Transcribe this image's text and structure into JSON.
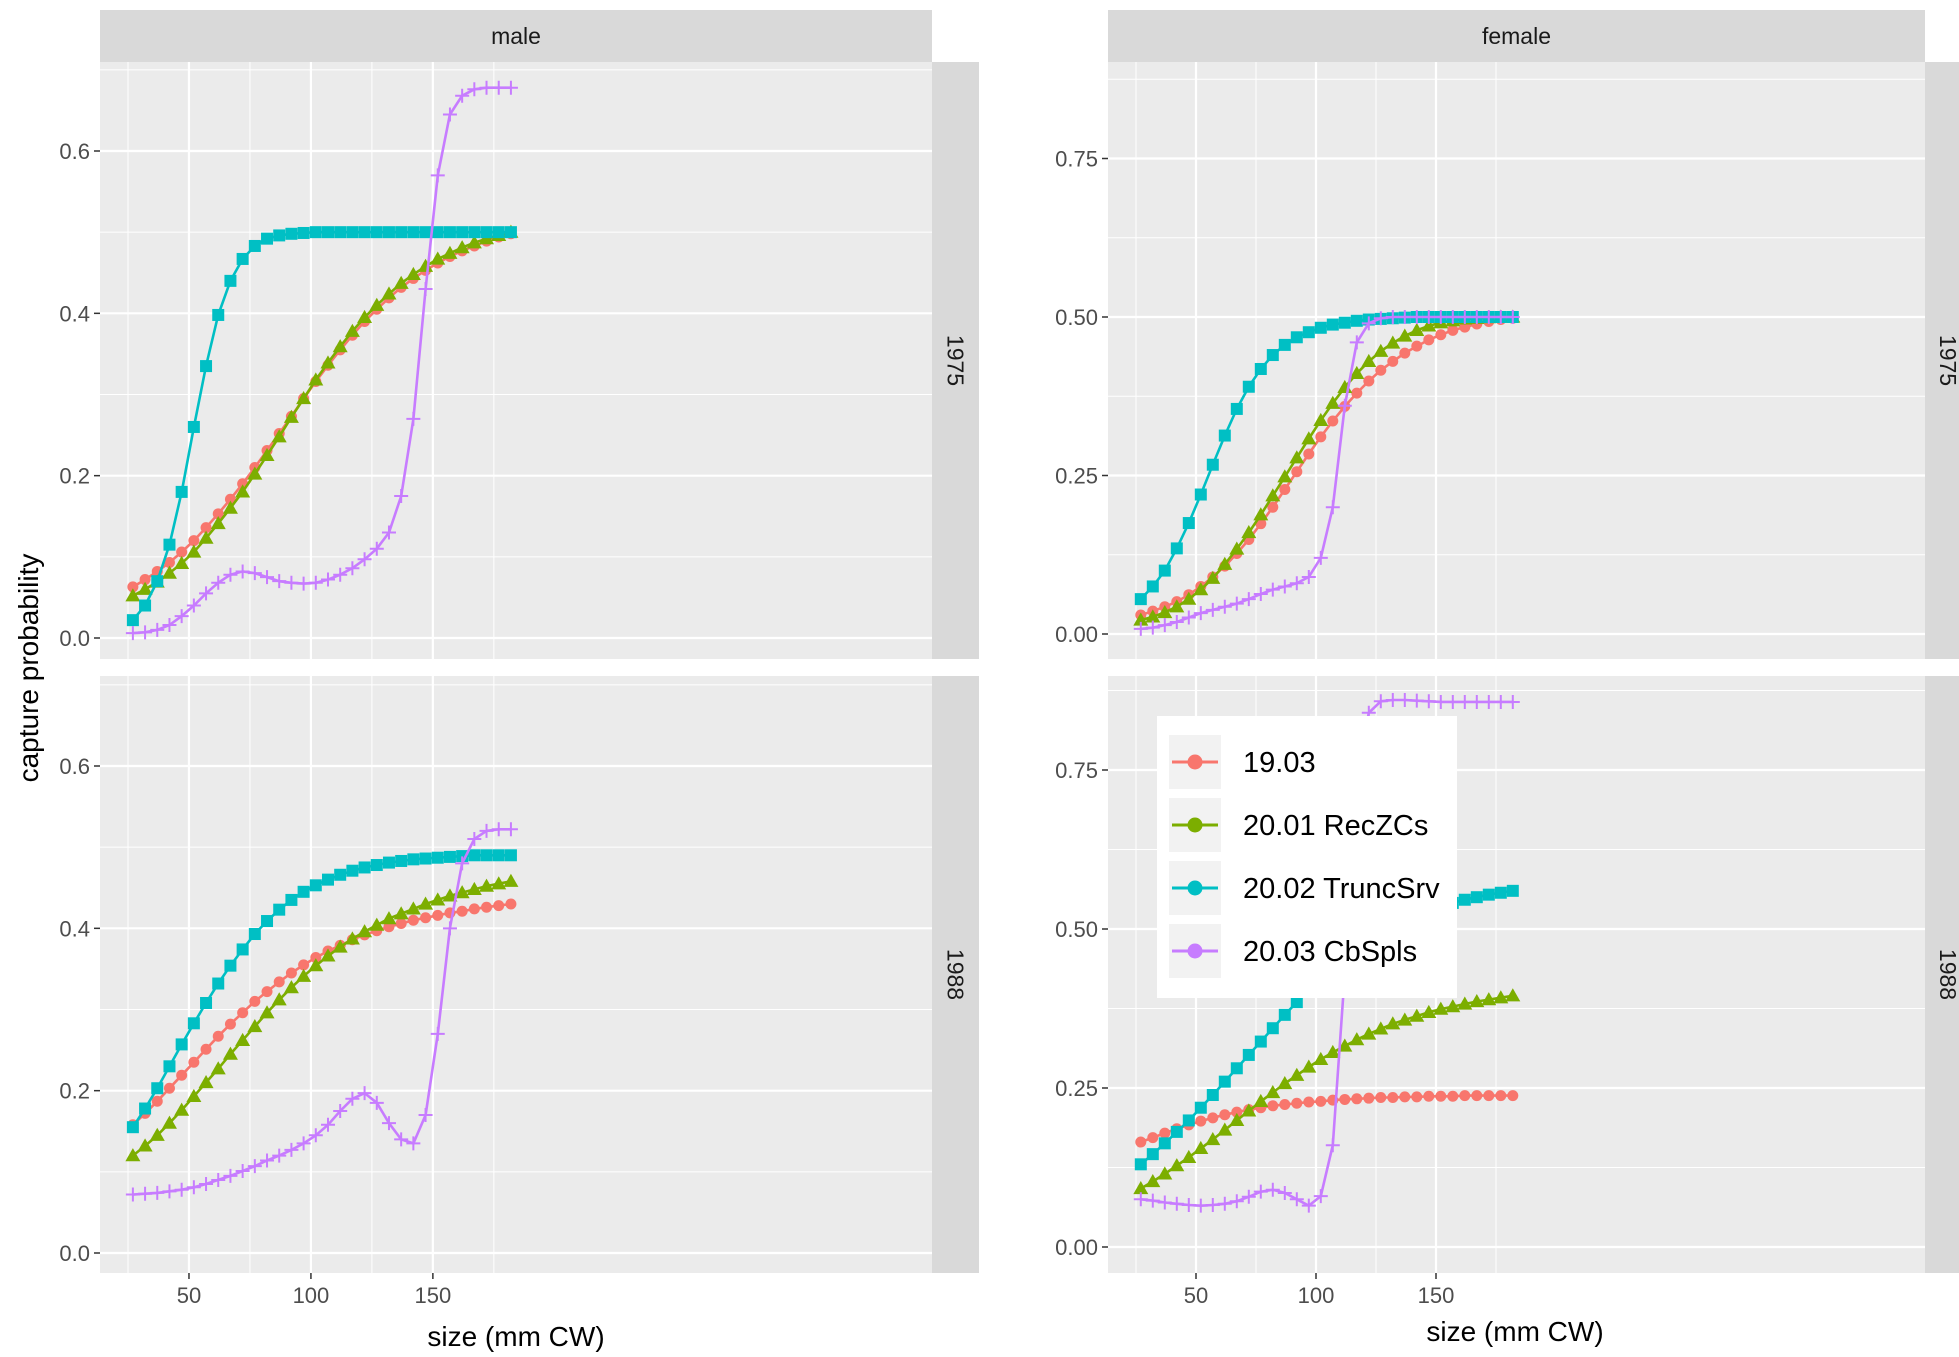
{
  "chart_data": {
    "type": "line",
    "layout": "facet_grid rows=year, cols=sex, independent y-scales per column",
    "ylabel": "capture probability",
    "xlabel": "size (mm CW)",
    "column_strips": [
      "male",
      "female"
    ],
    "row_strips": [
      "1975",
      "1988"
    ],
    "x_ticks": [
      50,
      100,
      150
    ],
    "y_ticks": {
      "male": [
        "0.0",
        "0.2",
        "0.4",
        "0.6"
      ],
      "female": [
        "0.00",
        "0.25",
        "0.50",
        "0.75"
      ]
    },
    "ylim": {
      "male": [
        -0.025,
        0.7
      ],
      "female": [
        -0.03,
        0.9
      ]
    },
    "xlim": [
      22,
      188
    ],
    "grid": true,
    "legend_position": "inside bottom-right panel, top-left",
    "colors": {
      "19.03": "#F8766D",
      "20.01 RecZCs": "#7CAE00",
      "20.02 TruncSrv": "#00BFC4",
      "20.03 CbSpls": "#C77CFF"
    },
    "series_names": [
      "19.03",
      "20.01 RecZCs",
      "20.02 TruncSrv",
      "20.03 CbSpls"
    ],
    "series_shapes": [
      "circle",
      "triangle",
      "square",
      "plus"
    ],
    "x": [
      27,
      32,
      37,
      42,
      47,
      52,
      57,
      62,
      67,
      72,
      77,
      82,
      87,
      92,
      97,
      102,
      107,
      112,
      117,
      122,
      127,
      132,
      137,
      142,
      147,
      152,
      157,
      162,
      167,
      172,
      177,
      182
    ],
    "panels": [
      {
        "sex": "male",
        "year": "1975",
        "series": [
          {
            "name": "19.03",
            "values": [
              0.063,
              0.072,
              0.082,
              0.093,
              0.106,
              0.12,
              0.136,
              0.153,
              0.171,
              0.19,
              0.21,
              0.231,
              0.252,
              0.273,
              0.295,
              0.316,
              0.336,
              0.355,
              0.373,
              0.39,
              0.405,
              0.419,
              0.432,
              0.443,
              0.453,
              0.462,
              0.47,
              0.477,
              0.483,
              0.489,
              0.494,
              0.498
            ]
          },
          {
            "name": "20.01 RecZCs",
            "values": [
              0.052,
              0.06,
              0.069,
              0.08,
              0.092,
              0.106,
              0.123,
              0.141,
              0.16,
              0.18,
              0.202,
              0.225,
              0.248,
              0.272,
              0.295,
              0.318,
              0.339,
              0.359,
              0.378,
              0.395,
              0.41,
              0.424,
              0.437,
              0.448,
              0.458,
              0.467,
              0.474,
              0.481,
              0.487,
              0.492,
              0.496,
              0.5
            ]
          },
          {
            "name": "20.02 TruncSrv",
            "values": [
              0.022,
              0.04,
              0.07,
              0.115,
              0.18,
              0.26,
              0.335,
              0.398,
              0.44,
              0.467,
              0.483,
              0.492,
              0.496,
              0.498,
              0.499,
              0.5,
              0.5,
              0.5,
              0.5,
              0.5,
              0.5,
              0.5,
              0.5,
              0.5,
              0.5,
              0.5,
              0.5,
              0.5,
              0.5,
              0.5,
              0.5,
              0.5
            ]
          },
          {
            "name": "20.03 CbSpls",
            "values": [
              0.006,
              0.007,
              0.01,
              0.016,
              0.027,
              0.04,
              0.055,
              0.068,
              0.078,
              0.082,
              0.08,
              0.075,
              0.07,
              0.068,
              0.067,
              0.068,
              0.072,
              0.078,
              0.086,
              0.097,
              0.11,
              0.13,
              0.175,
              0.27,
              0.43,
              0.57,
              0.645,
              0.668,
              0.676,
              0.678,
              0.678,
              0.678
            ]
          }
        ]
      },
      {
        "sex": "female",
        "year": "1975",
        "series": [
          {
            "name": "19.03",
            "values": [
              0.03,
              0.036,
              0.043,
              0.051,
              0.062,
              0.075,
              0.09,
              0.107,
              0.127,
              0.149,
              0.174,
              0.2,
              0.228,
              0.256,
              0.284,
              0.311,
              0.336,
              0.359,
              0.38,
              0.399,
              0.416,
              0.43,
              0.443,
              0.454,
              0.464,
              0.472,
              0.479,
              0.484,
              0.489,
              0.493,
              0.496,
              0.498
            ]
          },
          {
            "name": "20.01 RecZCs",
            "values": [
              0.022,
              0.027,
              0.034,
              0.043,
              0.055,
              0.07,
              0.088,
              0.11,
              0.134,
              0.16,
              0.188,
              0.218,
              0.248,
              0.278,
              0.308,
              0.337,
              0.364,
              0.389,
              0.411,
              0.43,
              0.446,
              0.459,
              0.47,
              0.479,
              0.486,
              0.491,
              0.494,
              0.497,
              0.498,
              0.499,
              0.5,
              0.5
            ]
          },
          {
            "name": "20.02 TruncSrv",
            "values": [
              0.055,
              0.075,
              0.1,
              0.135,
              0.175,
              0.22,
              0.267,
              0.313,
              0.355,
              0.39,
              0.418,
              0.44,
              0.456,
              0.468,
              0.476,
              0.483,
              0.488,
              0.491,
              0.494,
              0.496,
              0.497,
              0.498,
              0.499,
              0.5,
              0.5,
              0.5,
              0.5,
              0.5,
              0.5,
              0.5,
              0.5,
              0.5
            ]
          },
          {
            "name": "20.03 CbSpls",
            "values": [
              0.008,
              0.01,
              0.014,
              0.019,
              0.026,
              0.033,
              0.038,
              0.043,
              0.048,
              0.055,
              0.063,
              0.07,
              0.075,
              0.08,
              0.09,
              0.12,
              0.2,
              0.36,
              0.46,
              0.49,
              0.498,
              0.5,
              0.5,
              0.5,
              0.5,
              0.5,
              0.5,
              0.5,
              0.5,
              0.5,
              0.5,
              0.5
            ]
          }
        ]
      },
      {
        "sex": "male",
        "year": "1988",
        "series": [
          {
            "name": "19.03",
            "values": [
              0.158,
              0.172,
              0.187,
              0.203,
              0.219,
              0.235,
              0.251,
              0.267,
              0.282,
              0.296,
              0.31,
              0.322,
              0.334,
              0.345,
              0.355,
              0.364,
              0.372,
              0.379,
              0.386,
              0.392,
              0.397,
              0.402,
              0.406,
              0.41,
              0.413,
              0.416,
              0.419,
              0.421,
              0.424,
              0.426,
              0.428,
              0.43
            ]
          },
          {
            "name": "20.01 RecZCs",
            "values": [
              0.12,
              0.132,
              0.145,
              0.16,
              0.176,
              0.193,
              0.21,
              0.227,
              0.245,
              0.262,
              0.279,
              0.296,
              0.312,
              0.327,
              0.341,
              0.354,
              0.366,
              0.377,
              0.387,
              0.396,
              0.404,
              0.412,
              0.418,
              0.424,
              0.43,
              0.435,
              0.44,
              0.444,
              0.448,
              0.452,
              0.455,
              0.458
            ]
          },
          {
            "name": "20.02 TruncSrv",
            "values": [
              0.155,
              0.178,
              0.203,
              0.23,
              0.257,
              0.283,
              0.308,
              0.332,
              0.354,
              0.374,
              0.393,
              0.409,
              0.423,
              0.435,
              0.445,
              0.453,
              0.46,
              0.466,
              0.471,
              0.475,
              0.478,
              0.481,
              0.483,
              0.485,
              0.486,
              0.487,
              0.488,
              0.489,
              0.49,
              0.49,
              0.49,
              0.49
            ]
          },
          {
            "name": "20.03 CbSpls",
            "values": [
              0.072,
              0.073,
              0.074,
              0.076,
              0.078,
              0.081,
              0.085,
              0.09,
              0.095,
              0.101,
              0.107,
              0.114,
              0.12,
              0.127,
              0.135,
              0.145,
              0.158,
              0.175,
              0.19,
              0.197,
              0.185,
              0.16,
              0.14,
              0.135,
              0.17,
              0.27,
              0.4,
              0.48,
              0.51,
              0.52,
              0.522,
              0.522
            ]
          }
        ]
      },
      {
        "sex": "female",
        "year": "1988",
        "series": [
          {
            "name": "19.03",
            "values": [
              0.165,
              0.172,
              0.179,
              0.186,
              0.192,
              0.198,
              0.203,
              0.208,
              0.212,
              0.216,
              0.219,
              0.222,
              0.224,
              0.226,
              0.228,
              0.229,
              0.231,
              0.232,
              0.233,
              0.234,
              0.235,
              0.235,
              0.236,
              0.236,
              0.237,
              0.237,
              0.237,
              0.238,
              0.238,
              0.238,
              0.238,
              0.238
            ]
          },
          {
            "name": "20.01 RecZCs",
            "values": [
              0.092,
              0.103,
              0.115,
              0.128,
              0.141,
              0.155,
              0.169,
              0.184,
              0.199,
              0.214,
              0.229,
              0.243,
              0.257,
              0.27,
              0.283,
              0.295,
              0.306,
              0.316,
              0.326,
              0.335,
              0.343,
              0.351,
              0.357,
              0.363,
              0.369,
              0.374,
              0.378,
              0.382,
              0.386,
              0.389,
              0.392,
              0.395
            ]
          },
          {
            "name": "20.02 TruncSrv",
            "values": [
              0.13,
              0.146,
              0.163,
              0.181,
              0.199,
              0.219,
              0.239,
              0.26,
              0.281,
              0.302,
              0.323,
              0.344,
              0.365,
              0.385,
              0.404,
              0.422,
              0.439,
              0.455,
              0.469,
              0.482,
              0.493,
              0.504,
              0.513,
              0.521,
              0.529,
              0.535,
              0.541,
              0.546,
              0.55,
              0.554,
              0.557,
              0.56
            ]
          },
          {
            "name": "20.03 CbSpls",
            "values": [
              0.075,
              0.073,
              0.07,
              0.068,
              0.066,
              0.065,
              0.066,
              0.068,
              0.072,
              0.079,
              0.087,
              0.09,
              0.085,
              0.075,
              0.065,
              0.08,
              0.16,
              0.43,
              0.74,
              0.84,
              0.858,
              0.86,
              0.86,
              0.859,
              0.858,
              0.857,
              0.857,
              0.857,
              0.857,
              0.857,
              0.857,
              0.857
            ]
          }
        ]
      }
    ]
  }
}
